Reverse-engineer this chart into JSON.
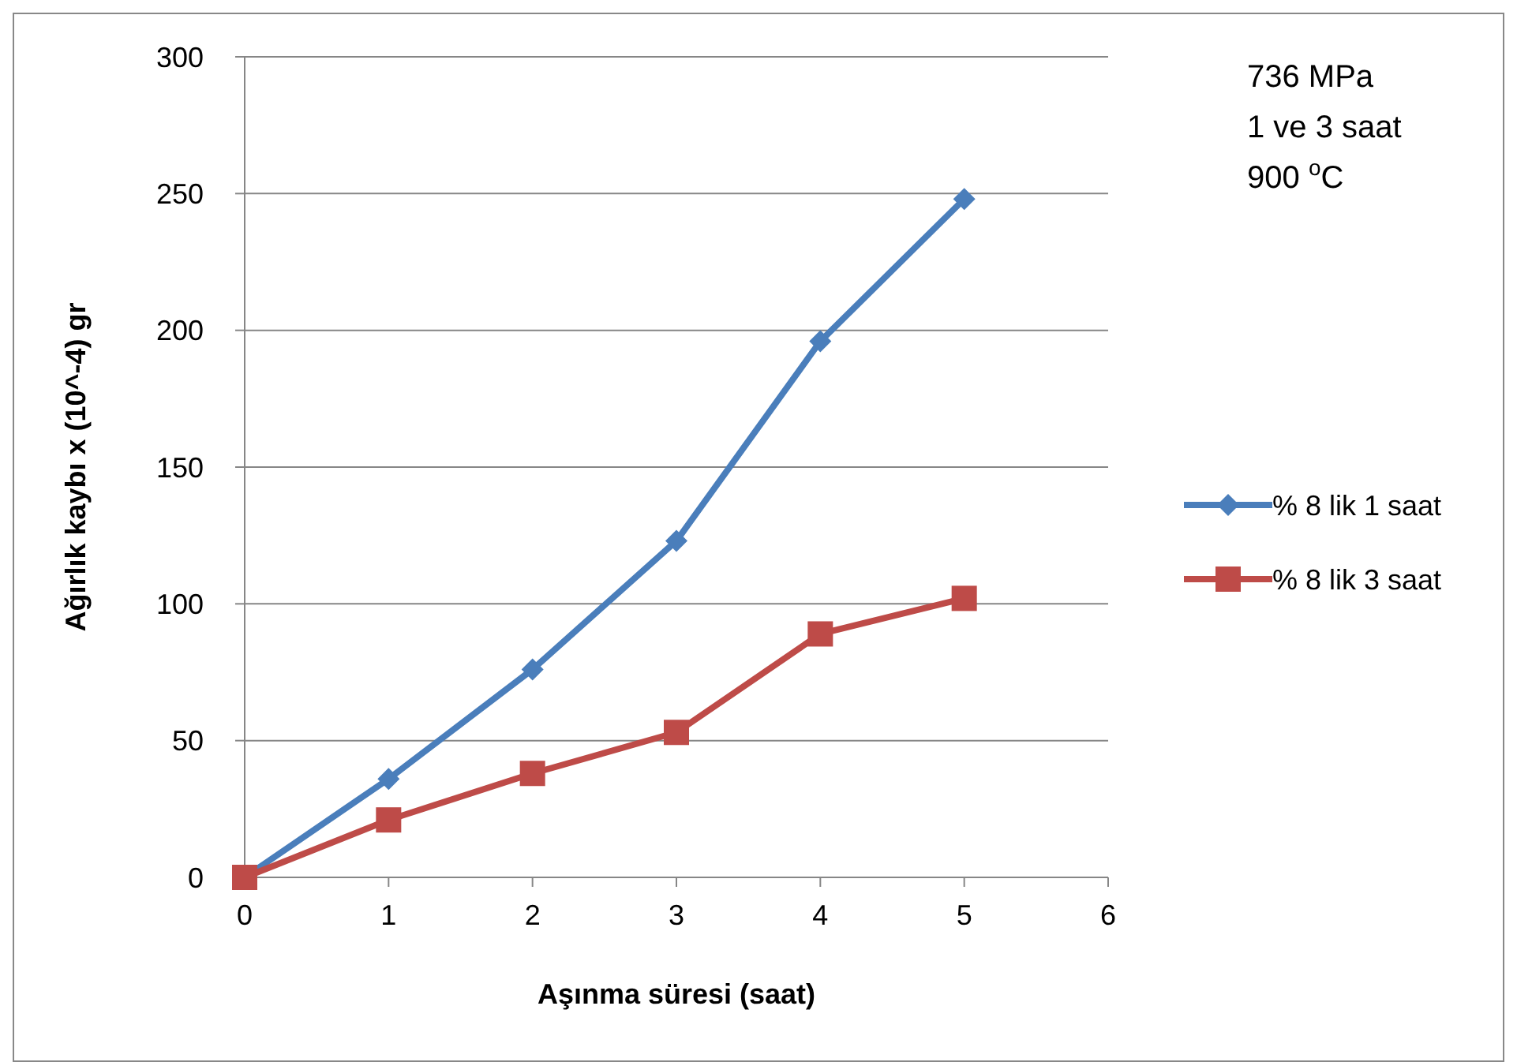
{
  "chart_data": {
    "type": "line",
    "xlabel": "Aşınma süresi (saat)",
    "ylabel": "Ağırlık kaybı x (10^-4) gr",
    "x": [
      0,
      1,
      2,
      3,
      4,
      5
    ],
    "series": [
      {
        "name": "% 8 lik 1 saat",
        "color": "#4a7ebb",
        "values": [
          0,
          36,
          76,
          123,
          196,
          248
        ],
        "marker": "diamond"
      },
      {
        "name": "% 8 lik 3 saat",
        "color": "#be4b48",
        "values": [
          0,
          21,
          38,
          53,
          89,
          102
        ],
        "marker": "square"
      }
    ],
    "xlim": [
      0,
      6
    ],
    "xticks": [
      0,
      1,
      2,
      3,
      4,
      5,
      6
    ],
    "ylim": [
      0,
      300
    ],
    "yticks": [
      0,
      50,
      100,
      150,
      200,
      250,
      300
    ],
    "grid": "y",
    "legend": "right",
    "line_style": "solid",
    "annotations": [
      "736 MPa",
      "1 ve 3 saat",
      "900 $^{o}$C"
    ]
  }
}
